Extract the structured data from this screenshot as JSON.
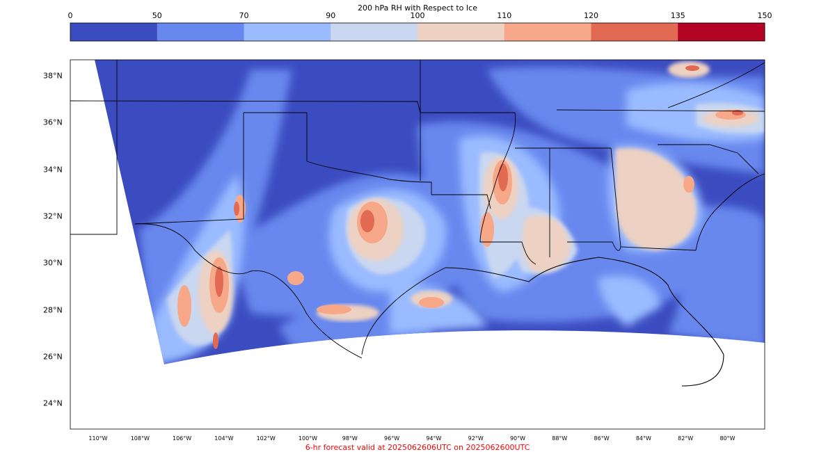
{
  "colorbar": {
    "title": "200 hPa RH with Respect to Ice",
    "ticks": [
      "0",
      "50",
      "70",
      "90",
      "100",
      "110",
      "120",
      "135",
      "150"
    ],
    "colors": [
      "#3b4cc0",
      "#6788ee",
      "#9abbff",
      "#c9d7f0",
      "#edd1c2",
      "#f7a889",
      "#e26952",
      "#b40426"
    ]
  },
  "map": {
    "lat_labels": [
      "38°N",
      "36°N",
      "34°N",
      "32°N",
      "30°N",
      "28°N",
      "26°N",
      "24°N"
    ],
    "lon_labels": [
      "110°W",
      "108°W",
      "106°W",
      "104°W",
      "102°W",
      "100°W",
      "98°W",
      "96°W",
      "94°W",
      "92°W",
      "90°W",
      "88°W",
      "86°W",
      "84°W",
      "82°W",
      "80°W"
    ]
  },
  "footer": {
    "text": "6-hr forecast valid at 2025062606UTC on 2025062600UTC"
  }
}
